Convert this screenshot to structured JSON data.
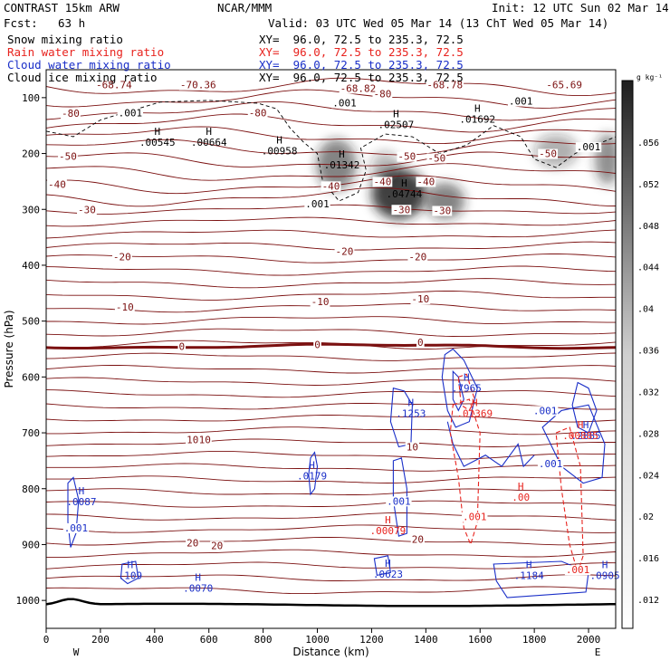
{
  "header": {
    "model": "CONTRAST 15km ARW",
    "center": "NCAR/MMM",
    "init": "Init: 12 UTC Sun 02 Mar 14",
    "fcst_label": "Fcst:",
    "fcst_value": "63 h",
    "valid": "Valid: 03 UTC Wed 05 Mar 14 (13 ChT Wed 05 Mar 14)"
  },
  "fields": [
    {
      "name": "Snow mixing ratio",
      "color": "#000000",
      "xy": "XY=  96.0, 72.5 to 235.3, 72.5"
    },
    {
      "name": "Rain water mixing ratio",
      "color": "#e8231e",
      "xy": "XY=  96.0, 72.5 to 235.3, 72.5"
    },
    {
      "name": "Cloud water mixing ratio",
      "color": "#1a2fc8",
      "xy": "XY=  96.0, 72.5 to 235.3, 72.5"
    },
    {
      "name": "Cloud ice mixing ratio",
      "color": "#000000",
      "xy": "XY=  96.0, 72.5 to 235.3, 72.5"
    }
  ],
  "colors": {
    "temperature": "#7b1010",
    "freezing": "#7b1010",
    "cloud_water": "#1a2fc8",
    "rain": "#e8231e",
    "snow": "#000000"
  },
  "chart_data": {
    "type": "contour",
    "xlabel": "Distance (km)",
    "ylabel": "Pressure (hPa)",
    "xlim": [
      0,
      2100
    ],
    "ylim": [
      1050,
      50
    ],
    "x_ticks": [
      0,
      200,
      400,
      600,
      800,
      1000,
      1200,
      1400,
      1600,
      1800,
      2000
    ],
    "y_ticks": [
      100,
      200,
      300,
      400,
      500,
      600,
      700,
      800,
      900,
      1000
    ],
    "x_end_labels": {
      "left": "W",
      "right": "E"
    },
    "colorbar": {
      "units": "g kg⁻¹",
      "ticks": [
        ".056",
        ".052",
        ".048",
        ".044",
        ".04",
        ".036",
        ".032",
        ".028",
        ".024",
        ".02",
        ".016",
        ".012"
      ]
    },
    "temperature_labels": [
      {
        "x": 1850,
        "p": 200,
        "text": "-50"
      },
      {
        "x": 1330,
        "p": 205,
        "text": "-50"
      },
      {
        "x": 1440,
        "p": 208,
        "text": "-50"
      },
      {
        "x": 1050,
        "p": 258,
        "text": "-40"
      },
      {
        "x": 1240,
        "p": 250,
        "text": "-40"
      },
      {
        "x": 1400,
        "p": 250,
        "text": "-40"
      },
      {
        "x": 40,
        "p": 255,
        "text": "-40"
      },
      {
        "x": 80,
        "p": 205,
        "text": "-50"
      },
      {
        "x": 90,
        "p": 128,
        "text": "-80"
      },
      {
        "x": 1240,
        "p": 93,
        "text": "-80"
      },
      {
        "x": 780,
        "p": 127,
        "text": "-80"
      },
      {
        "x": 1310,
        "p": 300,
        "text": "-30"
      },
      {
        "x": 1460,
        "p": 302,
        "text": "-30"
      },
      {
        "x": 150,
        "p": 300,
        "text": "-30"
      },
      {
        "x": 280,
        "p": 385,
        "text": "-20"
      },
      {
        "x": 1100,
        "p": 375,
        "text": "-20"
      },
      {
        "x": 1370,
        "p": 385,
        "text": "-20"
      },
      {
        "x": 290,
        "p": 475,
        "text": "-10"
      },
      {
        "x": 1010,
        "p": 465,
        "text": "-10"
      },
      {
        "x": 1380,
        "p": 460,
        "text": "-10"
      },
      {
        "x": 500,
        "p": 545,
        "text": "0"
      },
      {
        "x": 1000,
        "p": 542,
        "text": "0"
      },
      {
        "x": 1380,
        "p": 538,
        "text": "0"
      },
      {
        "x": 540,
        "p": 712,
        "text": "10"
      },
      {
        "x": 585,
        "p": 712,
        "text": "10"
      },
      {
        "x": 1350,
        "p": 725,
        "text": "10"
      },
      {
        "x": 540,
        "p": 897,
        "text": "20"
      },
      {
        "x": 630,
        "p": 902,
        "text": "20"
      },
      {
        "x": 1370,
        "p": 890,
        "text": "20"
      }
    ],
    "top_labels": [
      {
        "x": 250,
        "p": 77,
        "text": "-68.74"
      },
      {
        "x": 560,
        "p": 77,
        "text": "-70.36"
      },
      {
        "x": 1150,
        "p": 83,
        "text": "-68.82"
      },
      {
        "x": 1470,
        "p": 77,
        "text": "-68.78"
      },
      {
        "x": 1910,
        "p": 77,
        "text": "-65.69"
      }
    ],
    "maxima": [
      {
        "x": 390,
        "p": 180,
        "value": ".00545",
        "color": "#000000"
      },
      {
        "x": 580,
        "p": 180,
        "value": ".00664",
        "color": "#000000"
      },
      {
        "x": 840,
        "p": 195,
        "value": ".00958",
        "color": "#000000"
      },
      {
        "x": 1070,
        "p": 220,
        "value": ".01342",
        "color": "#000000"
      },
      {
        "x": 1270,
        "p": 148,
        "value": ".02507",
        "color": "#000000"
      },
      {
        "x": 1300,
        "p": 272,
        "value": ".04744",
        "color": "#000000"
      },
      {
        "x": 1570,
        "p": 138,
        "value": ".01692",
        "color": "#000000"
      },
      {
        "x": 1530,
        "p": 620,
        "value": ".7965",
        "color": "#1a2fc8"
      },
      {
        "x": 1325,
        "p": 665,
        "value": ".1253",
        "color": "#1a2fc8"
      },
      {
        "x": 960,
        "p": 777,
        "value": ".0179",
        "color": "#1a2fc8"
      },
      {
        "x": 110,
        "p": 823,
        "value": ".0087",
        "color": "#1a2fc8"
      },
      {
        "x": 290,
        "p": 955,
        "value": ".109",
        "color": "#1a2fc8"
      },
      {
        "x": 540,
        "p": 978,
        "value": ".0070",
        "color": "#1a2fc8"
      },
      {
        "x": 1240,
        "p": 953,
        "value": ".0623",
        "color": "#1a2fc8"
      },
      {
        "x": 1760,
        "p": 955,
        "value": ".1184",
        "color": "#1a2fc8"
      },
      {
        "x": 2040,
        "p": 955,
        "value": ".0905",
        "color": "#1a2fc8"
      },
      {
        "x": 1970,
        "p": 705,
        "value": ".2885",
        "color": "#1a2fc8"
      },
      {
        "x": 1560,
        "p": 665,
        "value": ".01369",
        "color": "#e8231e"
      },
      {
        "x": 1950,
        "p": 705,
        "value": ".00885",
        "color": "#e8231e"
      },
      {
        "x": 1730,
        "p": 815,
        "value": ".00",
        "color": "#e8231e"
      },
      {
        "x": 1240,
        "p": 875,
        "value": ".00079",
        "color": "#e8231e"
      }
    ],
    "contour_value_labels": [
      {
        "x": 310,
        "p": 127,
        "text": ".001",
        "color": "#000000"
      },
      {
        "x": 1000,
        "p": 290,
        "text": ".001",
        "color": "#000000"
      },
      {
        "x": 1100,
        "p": 109,
        "text": ".001",
        "color": "#000000"
      },
      {
        "x": 1750,
        "p": 106,
        "text": ".001",
        "color": "#000000"
      },
      {
        "x": 2000,
        "p": 188,
        "text": ".001",
        "color": "#000000"
      },
      {
        "x": 110,
        "p": 870,
        "text": ".001",
        "color": "#1a2fc8"
      },
      {
        "x": 1300,
        "p": 822,
        "text": ".001",
        "color": "#1a2fc8"
      },
      {
        "x": 1840,
        "p": 660,
        "text": ".001",
        "color": "#1a2fc8"
      },
      {
        "x": 1860,
        "p": 755,
        "text": ".001",
        "color": "#1a2fc8"
      },
      {
        "x": 1580,
        "p": 850,
        "text": ".001",
        "color": "#e8231e"
      },
      {
        "x": 1960,
        "p": 945,
        "text": ".001",
        "color": "#e8231e"
      }
    ]
  }
}
